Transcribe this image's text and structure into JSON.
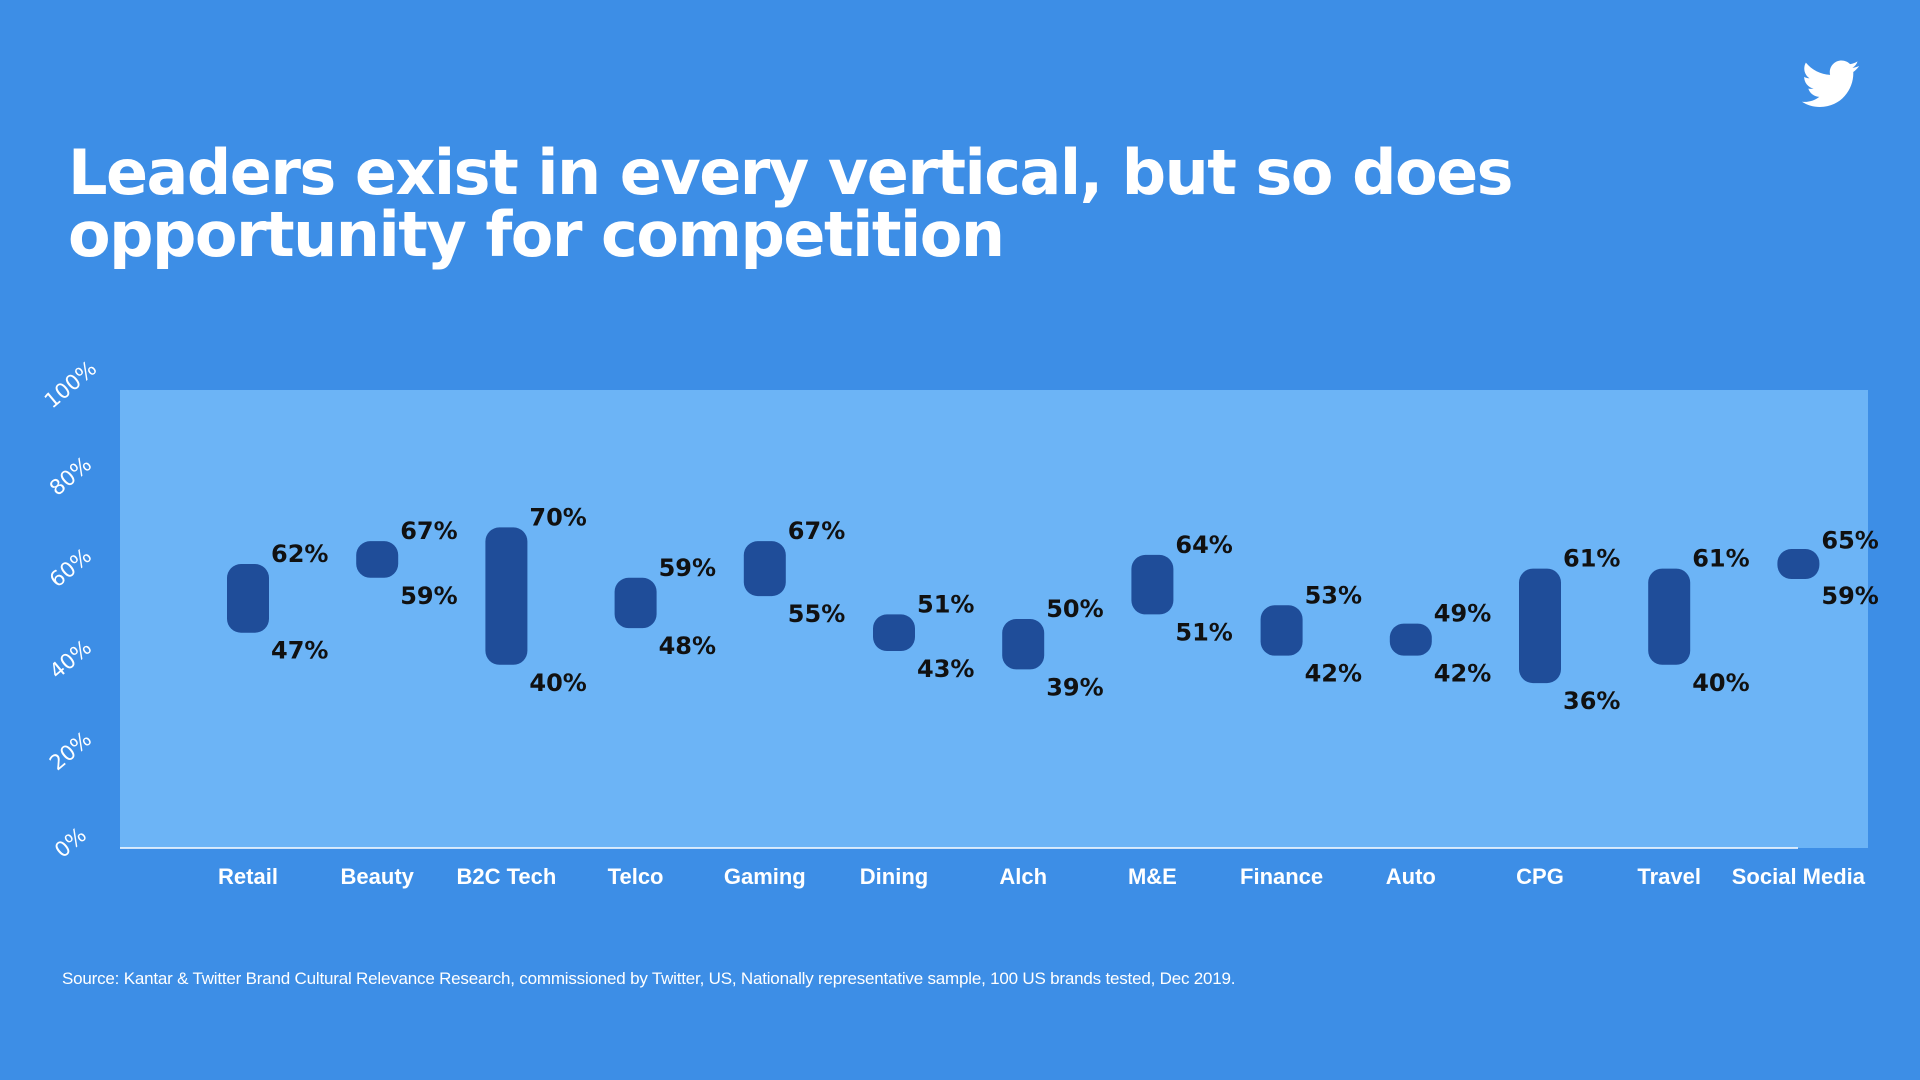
{
  "title_lines": [
    "Leaders exist in every vertical, but so does",
    "opportunity for competition"
  ],
  "source": "Source: Kantar & Twitter Brand Cultural Relevance Research, commissioned by Twitter, US, Nationally representative sample, 100 US brands tested, Dec 2019.",
  "logo_icon": "twitter-bird-icon",
  "colors": {
    "background": "#3d8ee6",
    "plot_area": "#6cb4f6",
    "range_bar": "#1f4d99",
    "value_label": "#111111",
    "axis_text": "#ffffff"
  },
  "chart_data": {
    "type": "range-bar",
    "ylim": [
      0,
      100
    ],
    "ytick_labels": [
      "0%",
      "20%",
      "40%",
      "60%",
      "80%",
      "100%"
    ],
    "grid": false,
    "categories": [
      "Retail",
      "Beauty",
      "B2C Tech",
      "Telco",
      "Gaming",
      "Dining",
      "Alch",
      "M&E",
      "Finance",
      "Auto",
      "CPG",
      "Travel",
      "Social Media"
    ],
    "high": [
      62,
      67,
      70,
      59,
      67,
      51,
      50,
      64,
      53,
      49,
      61,
      61,
      65
    ],
    "low": [
      47,
      59,
      40,
      48,
      55,
      43,
      39,
      51,
      42,
      42,
      36,
      40,
      59
    ],
    "high_labels": [
      "62%",
      "67%",
      "70%",
      "59%",
      "67%",
      "51%",
      "50%",
      "64%",
      "53%",
      "49%",
      "61%",
      "61%",
      "65%"
    ],
    "low_labels": [
      "47%",
      "59%",
      "40%",
      "48%",
      "55%",
      "43%",
      "39%",
      "51%",
      "42%",
      "42%",
      "36%",
      "40%",
      "59%"
    ]
  }
}
